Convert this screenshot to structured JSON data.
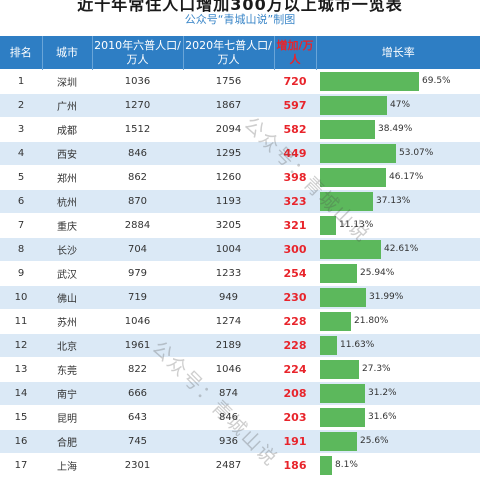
{
  "header": {
    "title": "近十年常住人口增加300万以上城市一览表",
    "subtitle": "公众号“青城山说”制图"
  },
  "columns": {
    "rank": "排名",
    "city": "城市",
    "pop2010": "2010年六普人口/万人",
    "pop2020": "2020年七普人口/万人",
    "increase": "增加/万人",
    "rate": "增长率"
  },
  "bar_color": "#5cb85c",
  "header_color": "#2e7ec4",
  "accent_red": "#e8242b",
  "rows": [
    {
      "rank": "1",
      "city": "深圳",
      "pop2010": "1036",
      "pop2020": "1756",
      "increase": "720",
      "rate": "69.5%",
      "rate_value": 69.5
    },
    {
      "rank": "2",
      "city": "广州",
      "pop2010": "1270",
      "pop2020": "1867",
      "increase": "597",
      "rate": "47%",
      "rate_value": 47
    },
    {
      "rank": "3",
      "city": "成都",
      "pop2010": "1512",
      "pop2020": "2094",
      "increase": "582",
      "rate": "38.49%",
      "rate_value": 38.49
    },
    {
      "rank": "4",
      "city": "西安",
      "pop2010": "846",
      "pop2020": "1295",
      "increase": "449",
      "rate": "53.07%",
      "rate_value": 53.07
    },
    {
      "rank": "5",
      "city": "郑州",
      "pop2010": "862",
      "pop2020": "1260",
      "increase": "398",
      "rate": "46.17%",
      "rate_value": 46.17
    },
    {
      "rank": "6",
      "city": "杭州",
      "pop2010": "870",
      "pop2020": "1193",
      "increase": "323",
      "rate": "37.13%",
      "rate_value": 37.13
    },
    {
      "rank": "7",
      "city": "重庆",
      "pop2010": "2884",
      "pop2020": "3205",
      "increase": "321",
      "rate": "11.13%",
      "rate_value": 11.13
    },
    {
      "rank": "8",
      "city": "长沙",
      "pop2010": "704",
      "pop2020": "1004",
      "increase": "300",
      "rate": "42.61%",
      "rate_value": 42.61
    },
    {
      "rank": "9",
      "city": "武汉",
      "pop2010": "979",
      "pop2020": "1233",
      "increase": "254",
      "rate": "25.94%",
      "rate_value": 25.94
    },
    {
      "rank": "10",
      "city": "佛山",
      "pop2010": "719",
      "pop2020": "949",
      "increase": "230",
      "rate": "31.99%",
      "rate_value": 31.99
    },
    {
      "rank": "11",
      "city": "苏州",
      "pop2010": "1046",
      "pop2020": "1274",
      "increase": "228",
      "rate": "21.80%",
      "rate_value": 21.8
    },
    {
      "rank": "12",
      "city": "北京",
      "pop2010": "1961",
      "pop2020": "2189",
      "increase": "228",
      "rate": "11.63%",
      "rate_value": 11.63
    },
    {
      "rank": "13",
      "city": "东莞",
      "pop2010": "822",
      "pop2020": "1046",
      "increase": "224",
      "rate": "27.3%",
      "rate_value": 27.3
    },
    {
      "rank": "14",
      "city": "南宁",
      "pop2010": "666",
      "pop2020": "874",
      "increase": "208",
      "rate": "31.2%",
      "rate_value": 31.2
    },
    {
      "rank": "15",
      "city": "昆明",
      "pop2010": "643",
      "pop2020": "846",
      "increase": "203",
      "rate": "31.6%",
      "rate_value": 31.6
    },
    {
      "rank": "16",
      "city": "合肥",
      "pop2010": "745",
      "pop2020": "936",
      "increase": "191",
      "rate": "25.6%",
      "rate_value": 25.6
    },
    {
      "rank": "17",
      "city": "上海",
      "pop2010": "2301",
      "pop2020": "2487",
      "increase": "186",
      "rate": "8.1%",
      "rate_value": 8.1
    }
  ],
  "watermark": "公众号：青城山说"
}
